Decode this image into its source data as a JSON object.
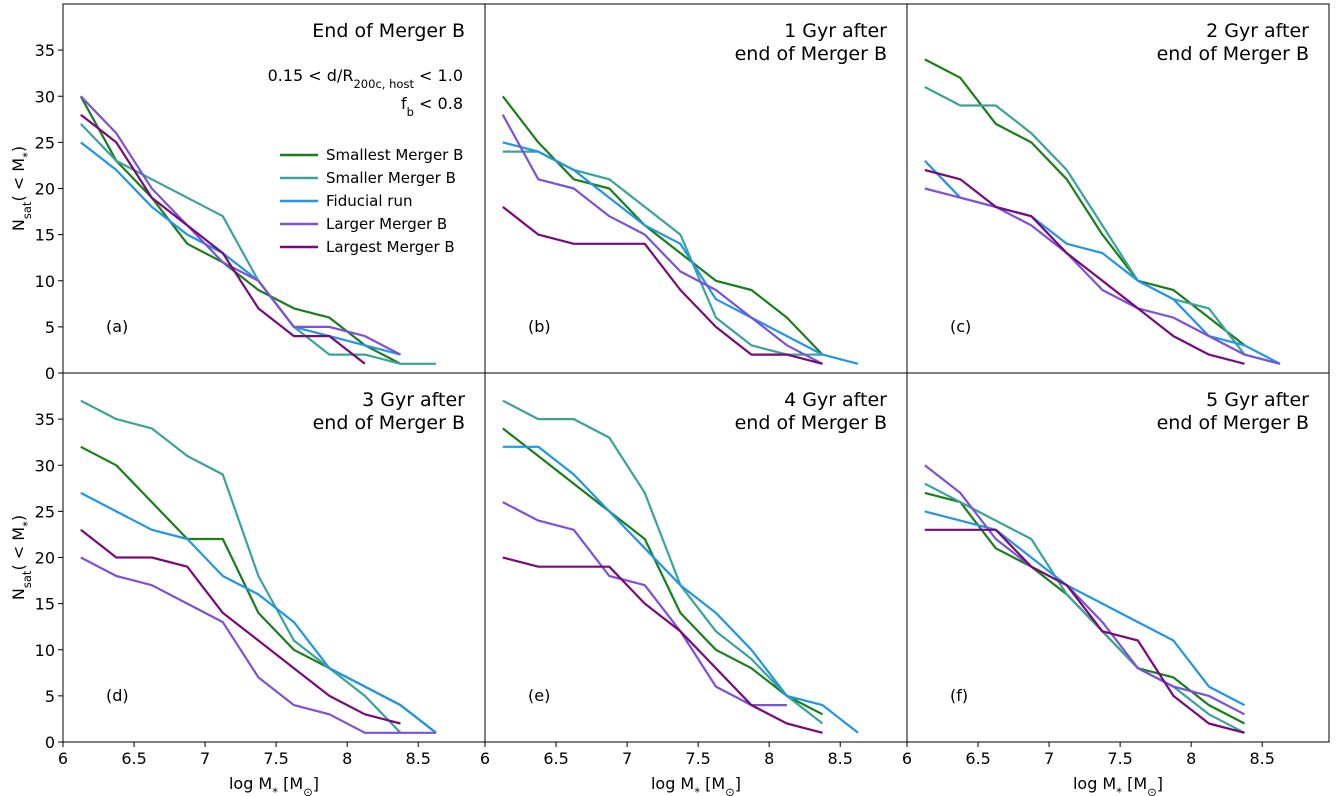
{
  "chart_data": [
    {
      "type": "line",
      "title": [
        "End of Merger B"
      ],
      "panel_label": "(a)",
      "annotations": [
        [
          "0.15 < d/R",
          "200c, host",
          " < 1.0"
        ],
        [
          "f",
          "b",
          " < 0.8"
        ]
      ],
      "ylabel": [
        "N",
        "sat",
        "( < M",
        "*",
        ")"
      ],
      "legend": "center-right",
      "x": [
        6.125,
        6.375,
        6.625,
        6.875,
        7.125,
        7.375,
        7.625,
        7.875,
        8.125,
        8.375,
        8.625
      ],
      "xlim": [
        6.0,
        8.97
      ],
      "ylim": [
        0,
        40
      ],
      "yticks": [
        0,
        5,
        10,
        15,
        20,
        25,
        30,
        35
      ],
      "series": [
        {
          "name": "Smallest Merger B",
          "color": "#1a7f1a",
          "values": [
            30,
            23,
            19,
            14,
            12,
            9,
            7,
            6,
            3,
            1,
            null
          ]
        },
        {
          "name": "Smaller Merger B",
          "color": "#3aa39a",
          "values": [
            27,
            23,
            21,
            19,
            17,
            10,
            5,
            2,
            2,
            1,
            1
          ]
        },
        {
          "name": "Fiducial run",
          "color": "#2196e8",
          "values": [
            25,
            22,
            18,
            15,
            13,
            10,
            5,
            4,
            3,
            2,
            null
          ]
        },
        {
          "name": "Larger Merger B",
          "color": "#7b52d9",
          "values": [
            30,
            26,
            20,
            16,
            12,
            10,
            5,
            5,
            4,
            2,
            null
          ]
        },
        {
          "name": "Largest Merger B",
          "color": "#7a0a7a",
          "values": [
            28,
            25,
            19,
            16,
            13,
            7,
            4,
            4,
            1,
            null,
            null
          ]
        }
      ]
    },
    {
      "type": "line",
      "title": [
        "1 Gyr after",
        "end of Merger B"
      ],
      "panel_label": "(b)",
      "x": [
        6.125,
        6.375,
        6.625,
        6.875,
        7.125,
        7.375,
        7.625,
        7.875,
        8.125,
        8.375,
        8.625
      ],
      "xlim": [
        6.0,
        8.97
      ],
      "ylim": [
        0,
        40
      ],
      "series": [
        {
          "name": "Smallest Merger B",
          "color": "#1a7f1a",
          "values": [
            30,
            25,
            21,
            20,
            16,
            13,
            10,
            9,
            6,
            2,
            null
          ]
        },
        {
          "name": "Smaller Merger B",
          "color": "#3aa39a",
          "values": [
            24,
            24,
            22,
            21,
            18,
            15,
            6,
            3,
            2,
            2,
            null
          ]
        },
        {
          "name": "Fiducial run",
          "color": "#2196e8",
          "values": [
            25,
            24,
            22,
            19,
            16,
            14,
            8,
            6,
            4,
            2,
            1
          ]
        },
        {
          "name": "Larger Merger B",
          "color": "#7b52d9",
          "values": [
            28,
            21,
            20,
            17,
            15,
            11,
            9,
            6,
            3,
            1,
            null
          ]
        },
        {
          "name": "Largest Merger B",
          "color": "#7a0a7a",
          "values": [
            18,
            15,
            14,
            14,
            14,
            9,
            5,
            2,
            2,
            1,
            null
          ]
        }
      ]
    },
    {
      "type": "line",
      "title": [
        "2 Gyr after",
        "end of Merger B"
      ],
      "panel_label": "(c)",
      "x": [
        6.125,
        6.375,
        6.625,
        6.875,
        7.125,
        7.375,
        7.625,
        7.875,
        8.125,
        8.375,
        8.625
      ],
      "xlim": [
        6.0,
        8.97
      ],
      "ylim": [
        0,
        40
      ],
      "series": [
        {
          "name": "Smallest Merger B",
          "color": "#1a7f1a",
          "values": [
            34,
            32,
            27,
            25,
            21,
            15,
            10,
            9,
            6,
            3,
            null
          ]
        },
        {
          "name": "Smaller Merger B",
          "color": "#3aa39a",
          "values": [
            31,
            29,
            29,
            26,
            22,
            16,
            10,
            8,
            7,
            2,
            1
          ]
        },
        {
          "name": "Fiducial run",
          "color": "#2196e8",
          "values": [
            23,
            19,
            18,
            17,
            14,
            13,
            10,
            8,
            4,
            3,
            1
          ]
        },
        {
          "name": "Larger Merger B",
          "color": "#7b52d9",
          "values": [
            20,
            19,
            18,
            16,
            13,
            9,
            7,
            6,
            4,
            2,
            1
          ]
        },
        {
          "name": "Largest Merger B",
          "color": "#7a0a7a",
          "values": [
            22,
            21,
            18,
            17,
            13,
            10,
            7,
            4,
            2,
            1,
            null
          ]
        }
      ]
    },
    {
      "type": "line",
      "title": [
        "3 Gyr after",
        "end of Merger B"
      ],
      "panel_label": "(d)",
      "ylabel": [
        "N",
        "sat",
        "( < M",
        "*",
        ")"
      ],
      "xlabel": [
        "log M",
        "*",
        " [M",
        "⊙",
        "]"
      ],
      "x": [
        6.125,
        6.375,
        6.625,
        6.875,
        7.125,
        7.375,
        7.625,
        7.875,
        8.125,
        8.375,
        8.625
      ],
      "xlim": [
        6.0,
        8.97
      ],
      "ylim": [
        0,
        40
      ],
      "yticks": [
        0,
        5,
        10,
        15,
        20,
        25,
        30,
        35
      ],
      "xticks": [
        6.0,
        6.5,
        7.0,
        7.5,
        8.0,
        8.5
      ],
      "series": [
        {
          "name": "Smallest Merger B",
          "color": "#1a7f1a",
          "values": [
            32,
            30,
            26,
            22,
            22,
            14,
            10,
            8,
            6,
            4,
            1
          ]
        },
        {
          "name": "Smaller Merger B",
          "color": "#3aa39a",
          "values": [
            37,
            35,
            34,
            31,
            29,
            18,
            11,
            8,
            5,
            1,
            null
          ]
        },
        {
          "name": "Fiducial run",
          "color": "#2196e8",
          "values": [
            27,
            25,
            23,
            22,
            18,
            16,
            13,
            8,
            6,
            4,
            1
          ]
        },
        {
          "name": "Larger Merger B",
          "color": "#7b52d9",
          "values": [
            20,
            18,
            17,
            15,
            13,
            7,
            4,
            3,
            1,
            1,
            1
          ]
        },
        {
          "name": "Largest Merger B",
          "color": "#7a0a7a",
          "values": [
            23,
            20,
            20,
            19,
            14,
            11,
            8,
            5,
            3,
            2,
            null
          ]
        }
      ]
    },
    {
      "type": "line",
      "title": [
        "4 Gyr after",
        "end of Merger B"
      ],
      "panel_label": "(e)",
      "xlabel": [
        "log M",
        "*",
        " [M",
        "⊙",
        "]"
      ],
      "x": [
        6.125,
        6.375,
        6.625,
        6.875,
        7.125,
        7.375,
        7.625,
        7.875,
        8.125,
        8.375,
        8.625
      ],
      "xlim": [
        6.0,
        8.97
      ],
      "ylim": [
        0,
        40
      ],
      "xticks": [
        6.0,
        6.5,
        7.0,
        7.5,
        8.0,
        8.5
      ],
      "series": [
        {
          "name": "Smallest Merger B",
          "color": "#1a7f1a",
          "values": [
            34,
            31,
            28,
            25,
            22,
            14,
            10,
            8,
            5,
            3,
            null
          ]
        },
        {
          "name": "Smaller Merger B",
          "color": "#3aa39a",
          "values": [
            37,
            35,
            35,
            33,
            27,
            17,
            12,
            9,
            5,
            2,
            null
          ]
        },
        {
          "name": "Fiducial run",
          "color": "#2196e8",
          "values": [
            32,
            32,
            29,
            25,
            21,
            17,
            14,
            10,
            5,
            4,
            1
          ]
        },
        {
          "name": "Larger Merger B",
          "color": "#7b52d9",
          "values": [
            26,
            24,
            23,
            18,
            17,
            12,
            6,
            4,
            4,
            null,
            null
          ]
        },
        {
          "name": "Largest Merger B",
          "color": "#7a0a7a",
          "values": [
            20,
            19,
            19,
            19,
            15,
            12,
            8,
            4,
            2,
            1,
            null
          ]
        }
      ]
    },
    {
      "type": "line",
      "title": [
        "5 Gyr after",
        "end of Merger B"
      ],
      "panel_label": "(f)",
      "xlabel": [
        "log M",
        "*",
        " [M",
        "⊙",
        "]"
      ],
      "x": [
        6.125,
        6.375,
        6.625,
        6.875,
        7.125,
        7.375,
        7.625,
        7.875,
        8.125,
        8.375,
        8.625
      ],
      "xlim": [
        6.0,
        8.97
      ],
      "ylim": [
        0,
        40
      ],
      "xticks": [
        6.0,
        6.5,
        7.0,
        7.5,
        8.0,
        8.5
      ],
      "series": [
        {
          "name": "Smallest Merger B",
          "color": "#1a7f1a",
          "values": [
            27,
            26,
            21,
            19,
            16,
            12,
            8,
            7,
            4,
            2,
            null
          ]
        },
        {
          "name": "Smaller Merger B",
          "color": "#3aa39a",
          "values": [
            28,
            26,
            24,
            22,
            16,
            12,
            8,
            6,
            3,
            1,
            null
          ]
        },
        {
          "name": "Fiducial run",
          "color": "#2196e8",
          "values": [
            25,
            24,
            23,
            20,
            17,
            15,
            13,
            11,
            6,
            4,
            null
          ]
        },
        {
          "name": "Larger Merger B",
          "color": "#7b52d9",
          "values": [
            30,
            27,
            22,
            19,
            17,
            13,
            8,
            6,
            5,
            3,
            null
          ]
        },
        {
          "name": "Largest Merger B",
          "color": "#7a0a7a",
          "values": [
            23,
            23,
            23,
            19,
            17,
            12,
            11,
            5,
            2,
            1,
            null
          ]
        }
      ]
    }
  ]
}
